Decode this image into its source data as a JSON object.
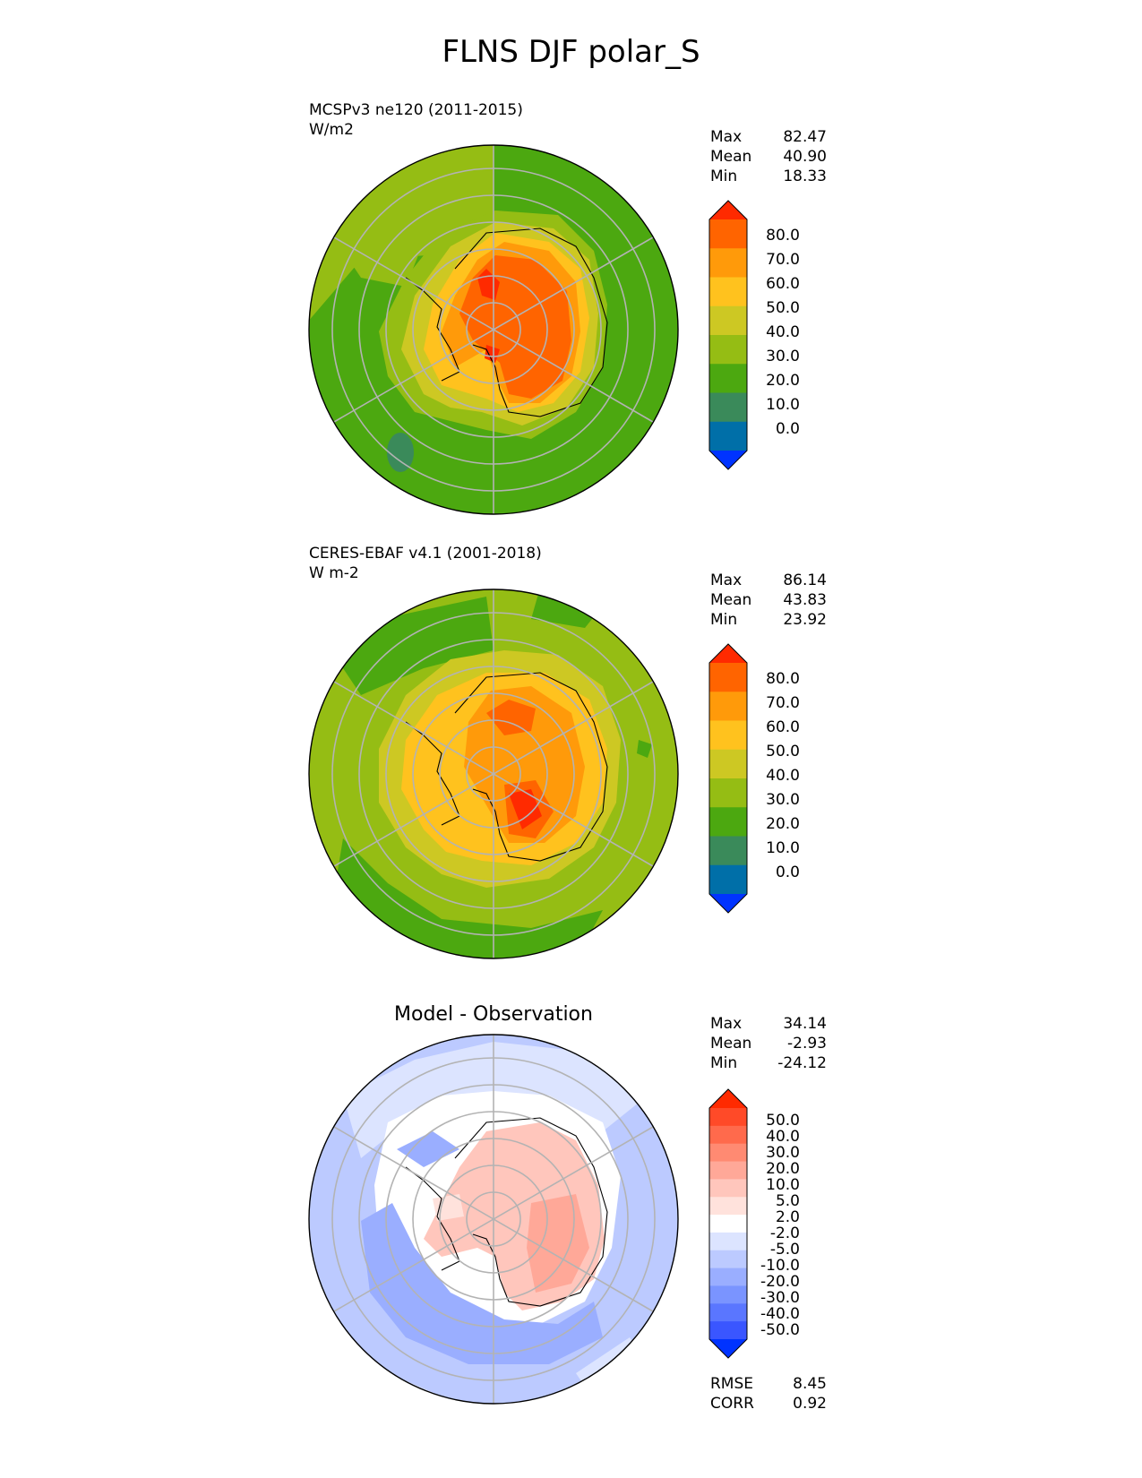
{
  "title": "FLNS DJF polar_S",
  "panels": [
    {
      "caption_line1": "MCSPv3 ne120 (2011-2015)",
      "caption_line2": "W/m2",
      "stats": [
        {
          "label": "Max",
          "value": "82.47"
        },
        {
          "label": "Mean",
          "value": "40.90"
        },
        {
          "label": "Min",
          "value": "18.33"
        }
      ],
      "colorbar": {
        "labels": [
          "80.0",
          "70.0",
          "60.0",
          "50.0",
          "40.0",
          "30.0",
          "20.0",
          "10.0",
          "0.0"
        ],
        "colors": [
          "#ff2a00",
          "#ff6400",
          "#ff9a0a",
          "#ffc21e",
          "#cdc823",
          "#95bd14",
          "#4ca810",
          "#3a8a5a",
          "#006fa8",
          "#0033ff"
        ]
      }
    },
    {
      "caption_line1": "CERES-EBAF v4.1 (2001-2018)",
      "caption_line2": "W m-2",
      "stats": [
        {
          "label": "Max",
          "value": "86.14"
        },
        {
          "label": "Mean",
          "value": "43.83"
        },
        {
          "label": "Min",
          "value": "23.92"
        }
      ],
      "colorbar": {
        "labels": [
          "80.0",
          "70.0",
          "60.0",
          "50.0",
          "40.0",
          "30.0",
          "20.0",
          "10.0",
          "0.0"
        ],
        "colors": [
          "#ff2a00",
          "#ff6400",
          "#ff9a0a",
          "#ffc21e",
          "#cdc823",
          "#95bd14",
          "#4ca810",
          "#3a8a5a",
          "#006fa8",
          "#0033ff"
        ]
      }
    },
    {
      "header": "Model - Observation",
      "stats": [
        {
          "label": "Max",
          "value": "34.14"
        },
        {
          "label": "Mean",
          "value": "-2.93"
        },
        {
          "label": "Min",
          "value": "-24.12"
        }
      ],
      "colorbar": {
        "labels": [
          "50.0",
          "40.0",
          "30.0",
          "20.0",
          "10.0",
          "5.0",
          "2.0",
          "-2.0",
          "-5.0",
          "-10.0",
          "-20.0",
          "-30.0",
          "-40.0",
          "-50.0"
        ],
        "colors": [
          "#ff2a00",
          "#ff4a28",
          "#ff6a4c",
          "#ff8a72",
          "#ffa898",
          "#ffc6bc",
          "#ffe2dc",
          "#ffffff",
          "#dce4ff",
          "#bccaff",
          "#9aaeff",
          "#7a94ff",
          "#5a76ff",
          "#3a56ff",
          "#0033ff"
        ]
      },
      "metrics": [
        {
          "label": "RMSE",
          "value": "8.45"
        },
        {
          "label": "CORR",
          "value": "0.92"
        }
      ]
    }
  ]
}
